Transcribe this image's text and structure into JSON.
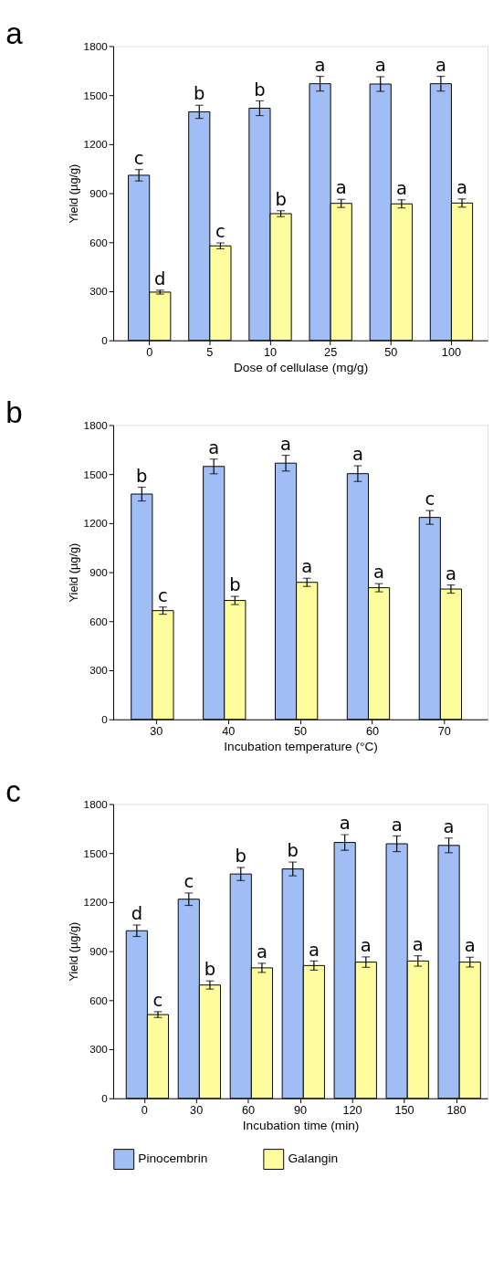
{
  "chart_data": [
    {
      "type": "bar",
      "title": "a",
      "xlabel": "Dose of cellulase (mg/g)",
      "ylabel": "Yield (µg/g)",
      "categories": [
        "0",
        "5",
        "10",
        "25",
        "50",
        "100"
      ],
      "ylim": [
        0,
        1800
      ],
      "yticks": [
        0,
        300,
        600,
        900,
        1200,
        1500,
        1800
      ],
      "grid": false,
      "legend": false,
      "series": [
        {
          "color": "#a0bdf5",
          "values": [
            1010,
            1398,
            1420,
            1570,
            1568,
            1570
          ],
          "errors": [
            35,
            40,
            45,
            45,
            45,
            45
          ],
          "value_labels": [
            "c",
            "b",
            "b",
            "a",
            "a",
            "a"
          ]
        },
        {
          "color": "#fefd9e",
          "values": [
            295,
            578,
            775,
            838,
            835,
            840
          ],
          "errors": [
            12,
            18,
            18,
            25,
            25,
            25
          ],
          "value_labels": [
            "d",
            "c",
            "b",
            "a",
            "a",
            "a"
          ]
        }
      ]
    },
    {
      "type": "bar",
      "title": "b",
      "xlabel": "Incubation temperature (°C)",
      "ylabel": "Yield (µg/g)",
      "categories": [
        "30",
        "40",
        "50",
        "60",
        "70"
      ],
      "ylim": [
        0,
        1800
      ],
      "yticks": [
        0,
        300,
        600,
        900,
        1200,
        1500,
        1800
      ],
      "grid": false,
      "legend": false,
      "series": [
        {
          "color": "#a0bdf5",
          "values": [
            1378,
            1547,
            1567,
            1503,
            1235
          ],
          "errors": [
            42,
            45,
            48,
            48,
            42
          ],
          "value_labels": [
            "b",
            "a",
            "a",
            "a",
            "c"
          ]
        },
        {
          "color": "#fefd9e",
          "values": [
            665,
            727,
            838,
            805,
            797
          ],
          "errors": [
            22,
            25,
            25,
            25,
            25
          ],
          "value_labels": [
            "c",
            "b",
            "a",
            "a",
            "a"
          ]
        }
      ]
    },
    {
      "type": "bar",
      "title": "c",
      "xlabel": "Incubation time (min)",
      "ylabel": "Yield (µg/g)",
      "categories": [
        "0",
        "30",
        "60",
        "90",
        "120",
        "150",
        "180"
      ],
      "ylim": [
        0,
        1800
      ],
      "yticks": [
        0,
        300,
        600,
        900,
        1200,
        1500,
        1800
      ],
      "grid": false,
      "legend": "bottom",
      "series": [
        {
          "name": "Pinocembrin",
          "color": "#a0bdf5",
          "values": [
            1025,
            1218,
            1372,
            1403,
            1565,
            1557,
            1547
          ],
          "errors": [
            35,
            38,
            40,
            42,
            48,
            48,
            45
          ],
          "value_labels": [
            "d",
            "c",
            "b",
            "b",
            "a",
            "a",
            "a"
          ]
        },
        {
          "name": "Galangin",
          "color": "#fefd9e",
          "values": [
            512,
            693,
            798,
            812,
            833,
            840,
            833
          ],
          "errors": [
            18,
            25,
            28,
            28,
            32,
            32,
            30
          ],
          "value_labels": [
            "c",
            "b",
            "a",
            "a",
            "a",
            "a",
            "a"
          ]
        }
      ]
    }
  ]
}
